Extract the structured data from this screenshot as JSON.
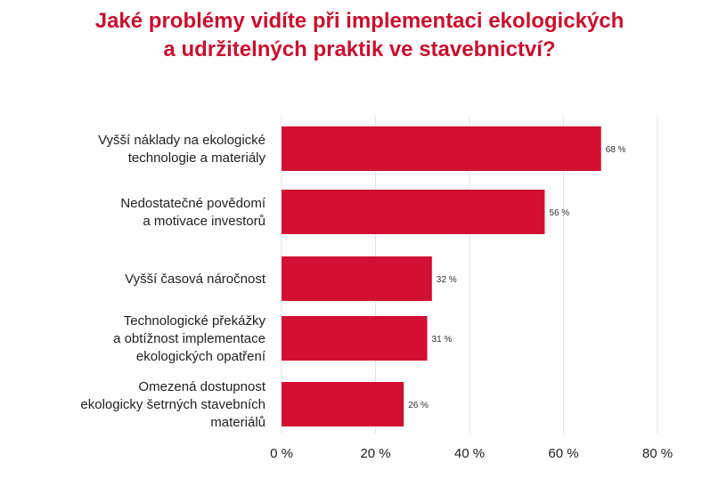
{
  "chart_data": {
    "type": "bar",
    "orientation": "horizontal",
    "title_lines": [
      "Jaké problémy vidíte při implementaci ekologických",
      "a udržitelných praktik ve stavebnictví?"
    ],
    "categories": [
      [
        "Vyšší náklady na ekologické",
        "technologie a materiály"
      ],
      [
        "Nedostatečné povědomí",
        "a motivace investorů"
      ],
      [
        "Vyšší časová náročnost"
      ],
      [
        "Technologické překážky",
        "a obtížnost implementace",
        "ekologických opatření"
      ],
      [
        "Omezená dostupnost",
        "ekologicky šetrných stavebních",
        "materiálů"
      ]
    ],
    "values": [
      68,
      56,
      32,
      31,
      26
    ],
    "value_labels": [
      "68 %",
      "56 %",
      "32 %",
      "31 %",
      "26 %"
    ],
    "xlim": [
      0,
      80
    ],
    "x_ticks": [
      0,
      20,
      40,
      60,
      80
    ],
    "x_tick_labels": [
      "0 %",
      "20 %",
      "40 %",
      "60 %",
      "80 %"
    ],
    "grid": "vertical",
    "bar_color": "#d31034",
    "title_color": "#c8102e",
    "grid_color": "#e3e3e3"
  }
}
